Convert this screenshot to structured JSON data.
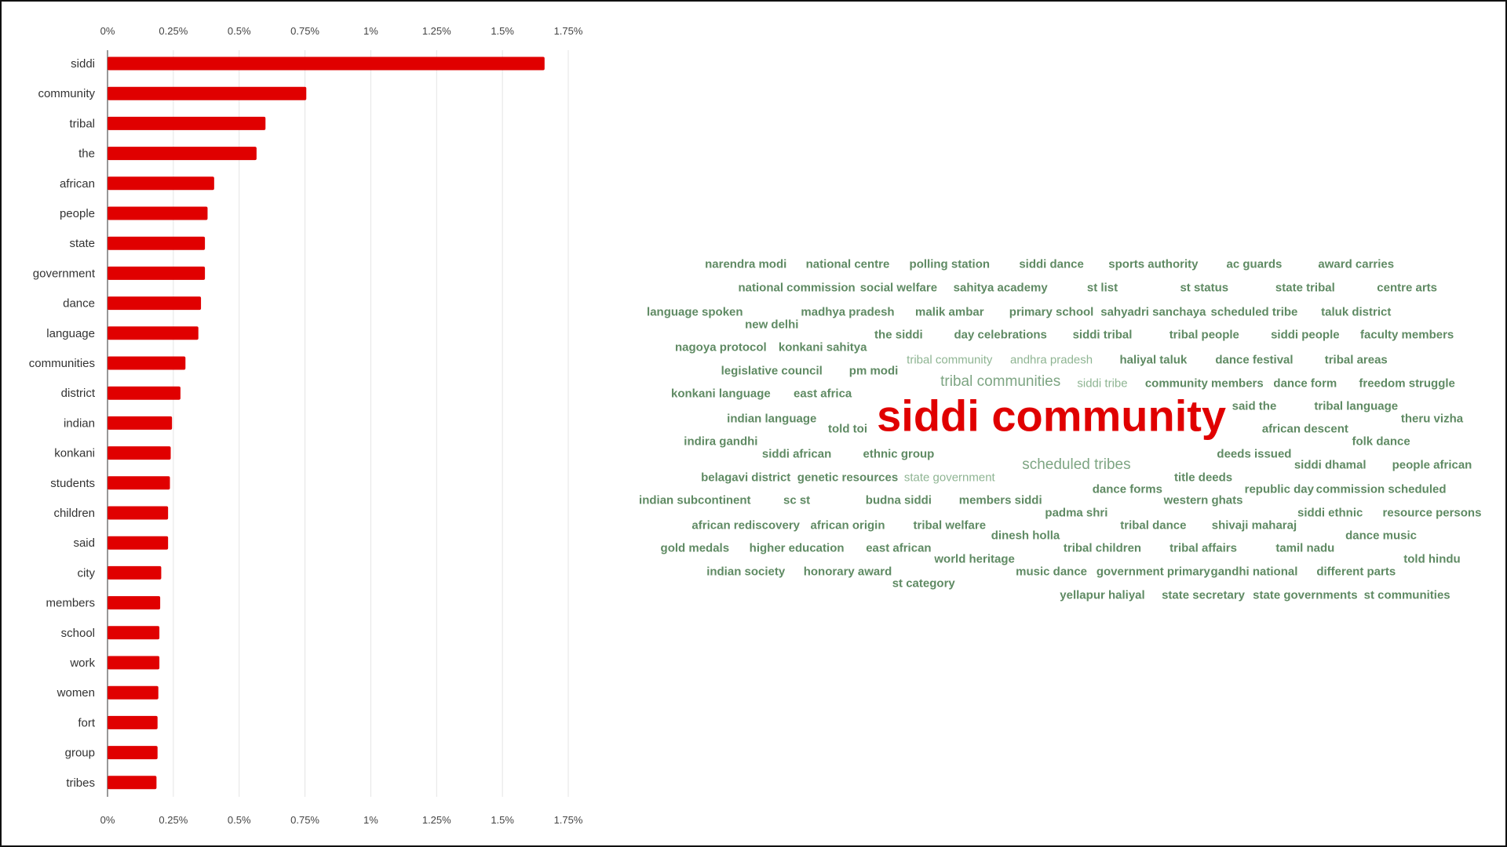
{
  "chart_data": [
    {
      "type": "bar",
      "orientation": "horizontal",
      "categories": [
        "siddi",
        "community",
        "tribal",
        "the",
        "african",
        "people",
        "state",
        "government",
        "dance",
        "language",
        "communities",
        "district",
        "indian",
        "konkani",
        "students",
        "children",
        "said",
        "city",
        "members",
        "school",
        "work",
        "women",
        "fort",
        "group",
        "tribes"
      ],
      "values": [
        1.66,
        0.755,
        0.6,
        0.566,
        0.405,
        0.38,
        0.37,
        0.37,
        0.355,
        0.345,
        0.296,
        0.277,
        0.245,
        0.24,
        0.237,
        0.23,
        0.23,
        0.204,
        0.2,
        0.197,
        0.197,
        0.193,
        0.19,
        0.19,
        0.186
      ],
      "unit": "%",
      "xlim": [
        0,
        1.75
      ],
      "xticks": [
        0,
        0.25,
        0.5,
        0.75,
        1,
        1.25,
        1.5,
        1.75
      ],
      "xtick_labels": [
        "0%",
        "0.25%",
        "0.5%",
        "0.75%",
        "1%",
        "1.25%",
        "1.5%",
        "1.75%"
      ],
      "axis_labels_top_and_bottom": true,
      "grid": true,
      "bar_color": "#e00000"
    },
    {
      "type": "wordcloud",
      "colors": {
        "primary": "#e00000",
        "secondary": "#5f8a63",
        "faded": "#8fb593"
      },
      "words": [
        {
          "text": "narendra modi"
        },
        {
          "text": "national centre"
        },
        {
          "text": "polling station"
        },
        {
          "text": "siddi dance"
        },
        {
          "text": "sports authority"
        },
        {
          "text": "ac guards"
        },
        {
          "text": "award carries"
        },
        {
          "text": "national commission"
        },
        {
          "text": "social welfare"
        },
        {
          "text": "sahitya academy"
        },
        {
          "text": "st list"
        },
        {
          "text": "st status"
        },
        {
          "text": "state tribal"
        },
        {
          "text": "centre arts"
        },
        {
          "text": "language spoken"
        },
        {
          "text": "madhya pradesh"
        },
        {
          "text": "malik ambar"
        },
        {
          "text": "primary school"
        },
        {
          "text": "sahyadri sanchaya"
        },
        {
          "text": "scheduled tribe"
        },
        {
          "text": "taluk district"
        },
        {
          "text": "new delhi"
        },
        {
          "text": "the siddi"
        },
        {
          "text": "day celebrations"
        },
        {
          "text": "siddi tribal"
        },
        {
          "text": "tribal people"
        },
        {
          "text": "siddi people"
        },
        {
          "text": "faculty members"
        },
        {
          "text": "nagoya protocol"
        },
        {
          "text": "konkani sahitya"
        },
        {
          "text": "tribal community",
          "style": "light"
        },
        {
          "text": "andhra pradesh",
          "style": "light"
        },
        {
          "text": "haliyal taluk"
        },
        {
          "text": "dance festival"
        },
        {
          "text": "tribal areas"
        },
        {
          "text": "legislative council"
        },
        {
          "text": "pm modi"
        },
        {
          "text": "tribal communities",
          "style": "big"
        },
        {
          "text": "siddi tribe",
          "style": "light"
        },
        {
          "text": "community members"
        },
        {
          "text": "dance form"
        },
        {
          "text": "freedom struggle"
        },
        {
          "text": "konkani language"
        },
        {
          "text": "east africa"
        },
        {
          "text": "said the"
        },
        {
          "text": "tribal language"
        },
        {
          "text": "indian language"
        },
        {
          "text": "theru vizha"
        },
        {
          "text": "told toi"
        },
        {
          "text": "siddi community",
          "style": "hero"
        },
        {
          "text": "african descent"
        },
        {
          "text": "indira gandhi"
        },
        {
          "text": "folk dance"
        },
        {
          "text": "siddi african"
        },
        {
          "text": "ethnic group"
        },
        {
          "text": "deeds issued"
        },
        {
          "text": "scheduled tribes",
          "style": "big"
        },
        {
          "text": "siddi dhamal"
        },
        {
          "text": "people african"
        },
        {
          "text": "belagavi district"
        },
        {
          "text": "genetic resources"
        },
        {
          "text": "state government",
          "style": "light"
        },
        {
          "text": "title deeds"
        },
        {
          "text": "dance forms"
        },
        {
          "text": "republic day"
        },
        {
          "text": "commission scheduled"
        },
        {
          "text": "indian subcontinent"
        },
        {
          "text": "sc st"
        },
        {
          "text": "budna siddi"
        },
        {
          "text": "members siddi"
        },
        {
          "text": "western ghats"
        },
        {
          "text": "padma shri"
        },
        {
          "text": "siddi ethnic"
        },
        {
          "text": "resource persons"
        },
        {
          "text": "african rediscovery"
        },
        {
          "text": "african origin"
        },
        {
          "text": "tribal welfare"
        },
        {
          "text": "tribal dance"
        },
        {
          "text": "shivaji maharaj"
        },
        {
          "text": "dinesh holla"
        },
        {
          "text": "dance music"
        },
        {
          "text": "gold medals"
        },
        {
          "text": "higher education"
        },
        {
          "text": "east african"
        },
        {
          "text": "tribal children"
        },
        {
          "text": "tribal affairs"
        },
        {
          "text": "tamil nadu"
        },
        {
          "text": "world heritage"
        },
        {
          "text": "told hindu"
        },
        {
          "text": "indian society"
        },
        {
          "text": "honorary award"
        },
        {
          "text": "music dance"
        },
        {
          "text": "government primary"
        },
        {
          "text": "gandhi national"
        },
        {
          "text": "different parts"
        },
        {
          "text": "st category"
        },
        {
          "text": "yellapur haliyal"
        },
        {
          "text": "state secretary"
        },
        {
          "text": "state governments"
        },
        {
          "text": "st communities"
        }
      ]
    }
  ]
}
